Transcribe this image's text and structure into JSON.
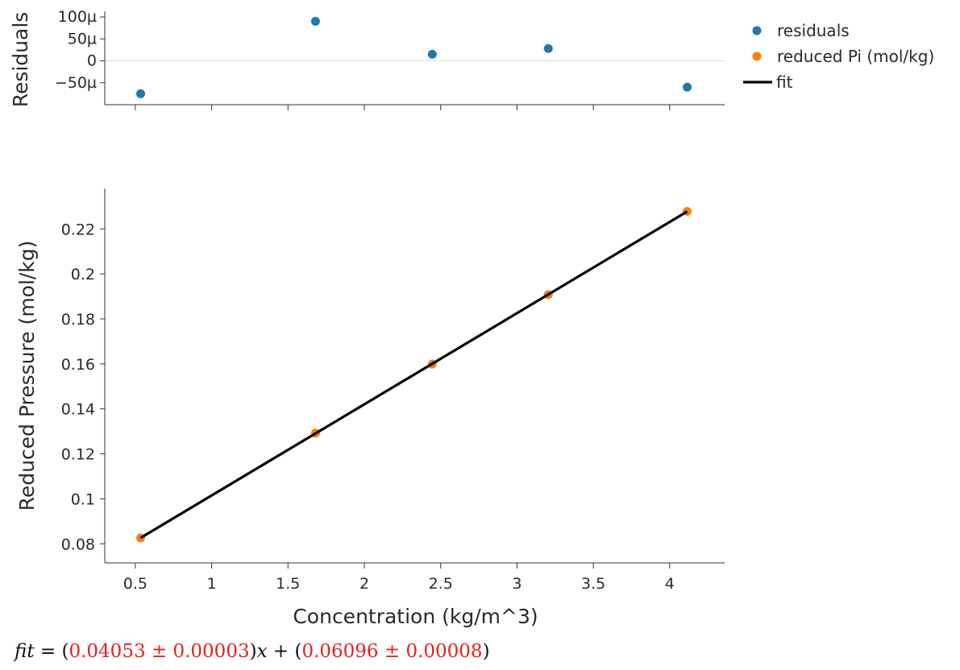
{
  "chart_data": {
    "type": "scatter",
    "xlabel": "Concentration (kg/m^3)",
    "x": [
      0.535,
      1.68,
      2.445,
      3.205,
      4.115
    ],
    "xlim": [
      0.3,
      4.36
    ],
    "xticks": [
      0.5,
      1,
      1.5,
      2,
      2.5,
      3,
      3.5,
      4
    ],
    "xtick_labels": [
      "0.5",
      "1",
      "1.5",
      "2",
      "2.5",
      "3",
      "3.5",
      "4"
    ],
    "residuals_panel": {
      "ylabel": "Residuals",
      "ylim": [
        -0.0001,
        0.000113
      ],
      "yticks": [
        -5e-05,
        0,
        5e-05,
        0.0001
      ],
      "ytick_labels": [
        "−50µ",
        "0",
        "50µ",
        "100µ"
      ],
      "zero_line": true,
      "series": [
        {
          "name": "residuals",
          "color": "#1f77b4",
          "y": [
            -7.5e-05,
            9e-05,
            1.5e-05,
            2.8e-05,
            -6e-05
          ]
        }
      ]
    },
    "main_panel": {
      "ylabel": "Reduced Pressure (mol/kg)",
      "ylim": [
        0.0715,
        0.238
      ],
      "yticks": [
        0.08,
        0.1,
        0.12,
        0.14,
        0.16,
        0.18,
        0.2,
        0.22
      ],
      "ytick_labels": [
        "0.08",
        "0.1",
        "0.12",
        "0.14",
        "0.16",
        "0.18",
        "0.2",
        "0.22"
      ],
      "series": [
        {
          "name": "reduced Pi (mol/kg)",
          "color": "#ff7f0e",
          "y": [
            0.0826,
            0.1292,
            0.1599,
            0.1908,
            0.2278
          ]
        }
      ],
      "fit": {
        "name": "fit",
        "color": "#000000",
        "slope": 0.04053,
        "intercept": 0.06096
      }
    },
    "legend": {
      "position": "top-right",
      "entries": [
        {
          "label": "residuals",
          "kind": "marker",
          "color": "#1f77b4"
        },
        {
          "label": "reduced Pi (mol/kg)",
          "kind": "marker",
          "color": "#ff7f0e"
        },
        {
          "label": "fit",
          "kind": "line",
          "color": "#000000"
        }
      ]
    }
  },
  "equation": {
    "lhs": "fit",
    "equals": " = (",
    "slope": "0.04053 ± 0.00003",
    "mid": ")",
    "var": "x",
    "plus": " + (",
    "intercept": "0.06096 ± 0.00008",
    "end": ")"
  }
}
